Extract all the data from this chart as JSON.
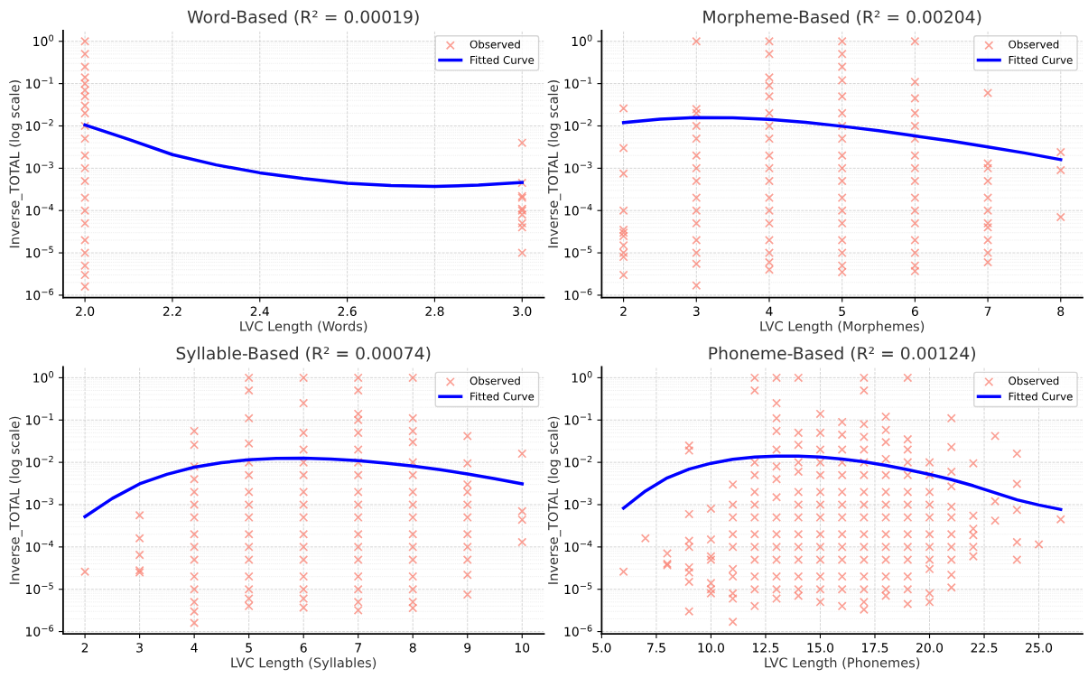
{
  "chart_data": [
    {
      "type": "scatter",
      "title": "Word-Based (R² = 0.00019)",
      "xlabel": "LVC Length (Words)",
      "ylabel": "Inverse_TOTAL (log scale)",
      "log": true,
      "grid": true,
      "legend": "top right",
      "xlim": [
        1.95,
        3.05
      ],
      "xticks": [
        {
          "value": 2.0,
          "label": "2.0"
        },
        {
          "value": 2.2,
          "label": "2.2"
        },
        {
          "value": 2.4,
          "label": "2.4"
        },
        {
          "value": 2.6,
          "label": "2.6"
        },
        {
          "value": 2.8,
          "label": "2.8"
        },
        {
          "value": 3.0,
          "label": "3.0"
        }
      ],
      "ylim": [
        8.8e-07,
        1.8
      ],
      "yticks": [
        {
          "value": 1e-06,
          "label": "10$^{−6}$"
        },
        {
          "value": 1e-05,
          "label": "10$^{−5}$"
        },
        {
          "value": 0.0001,
          "label": "10$^{−4}$"
        },
        {
          "value": 0.001,
          "label": "10$^{−3}$"
        },
        {
          "value": 0.01,
          "label": "10$^{−2}$"
        },
        {
          "value": 0.1,
          "label": "10$^{−1}$"
        },
        {
          "value": 1,
          "label": "10$^{0}$"
        }
      ],
      "series": [
        {
          "name": "Observed",
          "marker": "cross",
          "color": "#fa8072",
          "x": [
            2,
            2,
            2,
            2,
            2,
            2,
            2,
            2,
            2,
            2,
            2,
            2,
            2,
            2,
            2,
            2,
            2,
            2,
            2,
            2,
            2,
            2,
            3,
            3,
            3,
            3,
            3,
            3,
            3,
            3,
            3,
            3
          ],
          "values": [
            1,
            0.5,
            0.25,
            0.14,
            0.1,
            0.07,
            0.05,
            0.03,
            0.02,
            0.01,
            0.005,
            0.002,
            0.001,
            0.0005,
            0.0002,
            0.0001,
            5e-05,
            2e-05,
            1e-05,
            5e-06,
            3e-06,
            1.6e-06,
            0.004,
            0.00045,
            0.00022,
            0.0002,
            0.00011,
            0.0001,
            8e-05,
            5e-05,
            4e-05,
            1e-05
          ]
        },
        {
          "name": "Fitted Curve",
          "type": "line",
          "marker": "none",
          "line_style": "solid",
          "color": "#0000ff",
          "x": [
            2.0,
            2.1,
            2.2,
            2.3,
            2.4,
            2.5,
            2.6,
            2.7,
            2.8,
            2.9,
            3.0
          ],
          "values": [
            0.0105,
            0.0048,
            0.0021,
            0.0012,
            0.00078,
            0.00057,
            0.00044,
            0.00039,
            0.00037,
            0.0004,
            0.00046
          ]
        }
      ]
    },
    {
      "type": "scatter",
      "title": "Morpheme-Based (R² = 0.00204)",
      "xlabel": "LVC Length (Morphemes)",
      "ylabel": "Inverse_TOTAL (log scale)",
      "log": true,
      "grid": true,
      "legend": "top right",
      "xlim": [
        1.7,
        8.3
      ],
      "xticks": [
        2,
        3,
        4,
        5,
        6,
        7,
        8
      ],
      "ylim": [
        8.8e-07,
        1.8
      ],
      "yticks": [
        {
          "value": 1e-06,
          "label": "10$^{−6}$"
        },
        {
          "value": 1e-05,
          "label": "10$^{−5}$"
        },
        {
          "value": 0.0001,
          "label": "10$^{−4}$"
        },
        {
          "value": 0.001,
          "label": "10$^{−3}$"
        },
        {
          "value": 0.01,
          "label": "10$^{−2}$"
        },
        {
          "value": 0.1,
          "label": "10$^{−1}$"
        },
        {
          "value": 1,
          "label": "10$^{0}$"
        }
      ],
      "series": [
        {
          "name": "Observed",
          "marker": "cross",
          "color": "#fa8072",
          "x": [
            2,
            2,
            2,
            2,
            2,
            2,
            2,
            2,
            2,
            2,
            2,
            3,
            3,
            3,
            3,
            3,
            3,
            3,
            3,
            3,
            3,
            3,
            3,
            3,
            3,
            3,
            4,
            4,
            4,
            4,
            4,
            4,
            4,
            4,
            4,
            4,
            4,
            4,
            4,
            4,
            4,
            4,
            4,
            4,
            5,
            5,
            5,
            5,
            5,
            5,
            5,
            5,
            5,
            5,
            5,
            5,
            5,
            5,
            5,
            5,
            5,
            5,
            6,
            6,
            6,
            6,
            6,
            6,
            6,
            6,
            6,
            6,
            6,
            6,
            6,
            6,
            6,
            6,
            7,
            7,
            7,
            7,
            7,
            7,
            7,
            7,
            7,
            7,
            7,
            8,
            8,
            8
          ],
          "values": [
            0.026,
            0.003,
            0.00075,
            0.0001,
            3.5e-05,
            3e-05,
            2.5e-05,
            1.5e-05,
            1e-05,
            8e-06,
            3e-06,
            1,
            0.025,
            0.02,
            0.01,
            0.005,
            0.002,
            0.001,
            0.0005,
            0.0002,
            0.0001,
            5e-05,
            2e-05,
            1e-05,
            5.5e-06,
            1.7e-06,
            1,
            0.5,
            0.14,
            0.09,
            0.05,
            0.02,
            0.01,
            0.005,
            0.002,
            0.001,
            0.0005,
            0.0002,
            0.0001,
            5e-05,
            2e-05,
            1e-05,
            6e-06,
            4e-06,
            1,
            0.5,
            0.25,
            0.12,
            0.05,
            0.02,
            0.01,
            0.005,
            0.002,
            0.001,
            0.0005,
            0.0002,
            0.0001,
            5e-05,
            2e-05,
            1e-05,
            5e-06,
            3.5e-06,
            1,
            0.11,
            0.045,
            0.02,
            0.01,
            0.005,
            0.002,
            0.001,
            0.0005,
            0.0002,
            0.0001,
            5e-05,
            2e-05,
            1e-05,
            5e-06,
            3.7e-06,
            0.06,
            0.0013,
            0.001,
            0.0005,
            0.0002,
            0.0001,
            5e-05,
            4e-05,
            2e-05,
            1e-05,
            6e-06,
            0.0024,
            0.0009,
            7e-05
          ]
        },
        {
          "name": "Fitted Curve",
          "type": "line",
          "marker": "none",
          "line_style": "solid",
          "color": "#0000ff",
          "x": [
            2,
            2.5,
            3,
            3.5,
            4,
            4.5,
            5,
            5.5,
            6,
            6.5,
            7,
            7.5,
            8
          ],
          "values": [
            0.012,
            0.0145,
            0.0158,
            0.0155,
            0.0142,
            0.0122,
            0.0098,
            0.0077,
            0.0058,
            0.0044,
            0.0032,
            0.0023,
            0.0016
          ]
        }
      ]
    },
    {
      "type": "scatter",
      "title": "Syllable-Based (R² = 0.00074)",
      "xlabel": "LVC Length (Syllables)",
      "ylabel": "Inverse_TOTAL (log scale)",
      "log": true,
      "grid": true,
      "legend": "top right",
      "xlim": [
        1.6,
        10.4
      ],
      "xticks": [
        2,
        3,
        4,
        5,
        6,
        7,
        8,
        9,
        10
      ],
      "ylim": [
        8.8e-07,
        1.8
      ],
      "yticks": [
        {
          "value": 1e-06,
          "label": "10$^{−6}$"
        },
        {
          "value": 1e-05,
          "label": "10$^{−5}$"
        },
        {
          "value": 0.0001,
          "label": "10$^{−4}$"
        },
        {
          "value": 0.001,
          "label": "10$^{−3}$"
        },
        {
          "value": 0.01,
          "label": "10$^{−2}$"
        },
        {
          "value": 0.1,
          "label": "10$^{−1}$"
        },
        {
          "value": 1,
          "label": "10$^{0}$"
        }
      ],
      "series": [
        {
          "name": "Observed",
          "marker": "cross",
          "color": "#fa8072",
          "x": [
            2,
            3,
            3,
            3,
            3,
            3,
            4,
            4,
            4,
            4,
            4,
            4,
            4,
            4,
            4,
            4,
            4,
            4,
            4,
            4,
            4,
            5,
            5,
            5,
            5,
            5,
            5,
            5,
            5,
            5,
            5,
            5,
            5,
            5,
            5,
            5,
            5,
            6,
            6,
            6,
            6,
            6,
            6,
            6,
            6,
            6,
            6,
            6,
            6,
            6,
            6,
            6,
            6,
            7,
            7,
            7,
            7,
            7,
            7,
            7,
            7,
            7,
            7,
            7,
            7,
            7,
            7,
            7,
            7,
            7,
            7,
            8,
            8,
            8,
            8,
            8,
            8,
            8,
            8,
            8,
            8,
            8,
            8,
            8,
            8,
            8,
            8,
            9,
            9,
            9,
            9,
            9,
            9,
            9,
            9,
            9,
            9,
            9,
            10,
            10,
            10,
            10
          ],
          "values": [
            2.6e-05,
            0.00056,
            0.00016,
            6.5e-05,
            2.8e-05,
            2.5e-05,
            0.055,
            0.026,
            0.008,
            0.004,
            0.002,
            0.001,
            0.0005,
            0.0002,
            0.0001,
            5e-05,
            2e-05,
            1e-05,
            5e-06,
            3e-06,
            1.6e-06,
            1,
            0.5,
            0.11,
            0.028,
            0.01,
            0.005,
            0.002,
            0.001,
            0.0005,
            0.0002,
            0.0001,
            5e-05,
            2e-05,
            1e-05,
            6e-06,
            4e-06,
            1,
            0.25,
            0.05,
            0.02,
            0.01,
            0.005,
            0.002,
            0.001,
            0.0005,
            0.0002,
            0.0001,
            5e-05,
            2e-05,
            1e-05,
            6e-06,
            3.7e-06,
            1,
            0.5,
            0.14,
            0.1,
            0.05,
            0.02,
            0.01,
            0.005,
            0.002,
            0.001,
            0.0005,
            0.0002,
            0.0001,
            5e-05,
            2e-05,
            1e-05,
            5e-06,
            3.2e-06,
            1,
            0.11,
            0.055,
            0.03,
            0.01,
            0.005,
            0.002,
            0.001,
            0.0005,
            0.0002,
            0.0001,
            5e-05,
            2e-05,
            1e-05,
            5e-06,
            3.6e-06,
            0.042,
            0.0095,
            0.003,
            0.002,
            0.001,
            0.0005,
            0.0002,
            0.0001,
            5e-05,
            2.2e-05,
            7.5e-06,
            0.016,
            0.0007,
            0.00044,
            0.00013
          ]
        },
        {
          "name": "Fitted Curve",
          "type": "line",
          "marker": "none",
          "line_style": "solid",
          "color": "#0000ff",
          "x": [
            2,
            2.5,
            3,
            3.5,
            4,
            4.5,
            5,
            5.5,
            6,
            6.5,
            7,
            7.5,
            8,
            8.5,
            9,
            9.5,
            10
          ],
          "values": [
            0.00052,
            0.0014,
            0.0031,
            0.0052,
            0.0077,
            0.0098,
            0.0115,
            0.0124,
            0.0125,
            0.012,
            0.011,
            0.0096,
            0.0082,
            0.0067,
            0.0053,
            0.0041,
            0.0031
          ]
        }
      ]
    },
    {
      "type": "scatter",
      "title": "Phoneme-Based (R² = 0.00124)",
      "xlabel": "LVC Length (Phonemes)",
      "ylabel": "Inverse_TOTAL (log scale)",
      "log": true,
      "grid": true,
      "legend": "top right",
      "xlim": [
        5.0,
        27.0
      ],
      "xticks": [
        {
          "value": 5.0,
          "label": "5.0"
        },
        {
          "value": 7.5,
          "label": "7.5"
        },
        {
          "value": 10.0,
          "label": "10.0"
        },
        {
          "value": 12.5,
          "label": "12.5"
        },
        {
          "value": 15.0,
          "label": "15.0"
        },
        {
          "value": 17.5,
          "label": "17.5"
        },
        {
          "value": 20.0,
          "label": "20.0"
        },
        {
          "value": 22.5,
          "label": "22.5"
        },
        {
          "value": 25.0,
          "label": "25.0"
        }
      ],
      "ylim": [
        8.8e-07,
        1.8
      ],
      "yticks": [
        {
          "value": 1e-06,
          "label": "10$^{−6}$"
        },
        {
          "value": 1e-05,
          "label": "10$^{−5}$"
        },
        {
          "value": 0.0001,
          "label": "10$^{−4}$"
        },
        {
          "value": 0.001,
          "label": "10$^{−3}$"
        },
        {
          "value": 0.01,
          "label": "10$^{−2}$"
        },
        {
          "value": 0.1,
          "label": "10$^{−1}$"
        },
        {
          "value": 1,
          "label": "10$^{0}$"
        }
      ],
      "series": [
        {
          "name": "Observed",
          "marker": "cross",
          "color": "#fa8072",
          "x": [
            6,
            7,
            8,
            8,
            8,
            9,
            9,
            9,
            9,
            9,
            9,
            9,
            9,
            9,
            10,
            10,
            10,
            10,
            10,
            10,
            10,
            11,
            11,
            11,
            11,
            11,
            11,
            11,
            11,
            11,
            11,
            12,
            12,
            12,
            12,
            12,
            12,
            12,
            12,
            12,
            12,
            12,
            12,
            12,
            13,
            13,
            13,
            13,
            13,
            13,
            13,
            13,
            13,
            13,
            13,
            13,
            13,
            13,
            13,
            14,
            14,
            14,
            14,
            14,
            14,
            14,
            14,
            14,
            14,
            14,
            14,
            14,
            14,
            15,
            15,
            15,
            15,
            15,
            15,
            15,
            15,
            15,
            15,
            15,
            15,
            15,
            15,
            16,
            16,
            16,
            16,
            16,
            16,
            16,
            16,
            16,
            16,
            16,
            16,
            16,
            16,
            17,
            17,
            17,
            17,
            17,
            17,
            17,
            17,
            17,
            17,
            17,
            17,
            17,
            17,
            17,
            17,
            17,
            18,
            18,
            18,
            18,
            18,
            18,
            18,
            18,
            18,
            18,
            18,
            18,
            18,
            18,
            19,
            19,
            19,
            19,
            19,
            19,
            19,
            19,
            19,
            19,
            19,
            19,
            19,
            19,
            20,
            20,
            20,
            20,
            20,
            20,
            20,
            20,
            20,
            20,
            20,
            21,
            21,
            21,
            21,
            21,
            21,
            21,
            21,
            21,
            21,
            21,
            22,
            22,
            22,
            22,
            22,
            22,
            23,
            23,
            23,
            24,
            24,
            24,
            24,
            24,
            25,
            26
          ],
          "values": [
            2.6e-05,
            0.00016,
            7e-05,
            4e-05,
            3.7e-05,
            0.025,
            0.019,
            0.0006,
            0.00014,
            0.0001,
            3.3e-05,
            2.5e-05,
            1.5e-05,
            3e-06,
            0.0008,
            0.00015,
            6e-05,
            5e-05,
            1.4e-05,
            1e-05,
            8e-06,
            0.003,
            0.001,
            0.0005,
            0.0002,
            0.0001,
            3e-05,
            2e-05,
            8e-06,
            6e-06,
            1.7e-06,
            1,
            0.5,
            0.01,
            0.005,
            0.002,
            0.001,
            0.0005,
            0.0002,
            0.0001,
            5e-05,
            2e-05,
            1e-05,
            4e-06,
            1,
            0.25,
            0.11,
            0.055,
            0.02,
            0.008,
            0.004,
            0.0015,
            0.0005,
            0.0002,
            0.0001,
            5e-05,
            2e-05,
            1e-05,
            6e-06,
            1,
            0.05,
            0.026,
            0.01,
            0.006,
            0.002,
            0.001,
            0.0005,
            0.0002,
            0.0001,
            5e-05,
            2e-05,
            1e-05,
            7e-06,
            0.14,
            0.05,
            0.02,
            0.01,
            0.005,
            0.002,
            0.001,
            0.0005,
            0.0002,
            0.0001,
            5e-05,
            2e-05,
            1e-05,
            5e-06,
            0.09,
            0.045,
            0.02,
            0.01,
            0.005,
            0.002,
            0.001,
            0.0005,
            0.0002,
            0.0001,
            5e-05,
            2e-05,
            1e-05,
            4e-06,
            1,
            0.5,
            0.08,
            0.04,
            0.02,
            0.01,
            0.005,
            0.002,
            0.001,
            0.0005,
            0.0002,
            0.0001,
            5e-05,
            2e-05,
            1e-05,
            5e-06,
            3.3e-06,
            0.12,
            0.058,
            0.03,
            0.012,
            0.005,
            0.002,
            0.001,
            0.0005,
            0.0002,
            0.0001,
            5e-05,
            2e-05,
            1e-05,
            7e-06,
            1,
            0.035,
            0.02,
            0.01,
            0.005,
            0.002,
            0.001,
            0.0005,
            0.0002,
            0.0001,
            5e-05,
            2e-05,
            1e-05,
            4.5e-06,
            0.01,
            0.005,
            0.002,
            0.001,
            0.0005,
            0.0002,
            0.0001,
            5e-05,
            3e-05,
            8e-06,
            5e-06,
            0.11,
            0.023,
            0.006,
            0.0027,
            0.0009,
            0.0005,
            0.0002,
            0.0001,
            5e-05,
            2.2e-05,
            1.1e-05,
            0.0095,
            0.00055,
            0.00027,
            0.00019,
            0.0001,
            6e-05,
            0.042,
            0.0012,
            0.00042,
            0.016,
            0.0031,
            0.00075,
            0.00013,
            5e-05,
            0.000115,
            0.00045
          ]
        },
        {
          "name": "Fitted Curve",
          "type": "line",
          "marker": "none",
          "line_style": "solid",
          "color": "#0000ff",
          "x": [
            6,
            7,
            8,
            9,
            10,
            11,
            12,
            13,
            14,
            15,
            16,
            17,
            18,
            19,
            20,
            21,
            22,
            23,
            24,
            25,
            26
          ],
          "values": [
            0.00083,
            0.0021,
            0.0043,
            0.0069,
            0.0095,
            0.0118,
            0.0133,
            0.014,
            0.014,
            0.0133,
            0.012,
            0.0103,
            0.0085,
            0.0067,
            0.0052,
            0.0039,
            0.0028,
            0.0019,
            0.0013,
            0.00098,
            0.00077
          ]
        }
      ]
    }
  ]
}
